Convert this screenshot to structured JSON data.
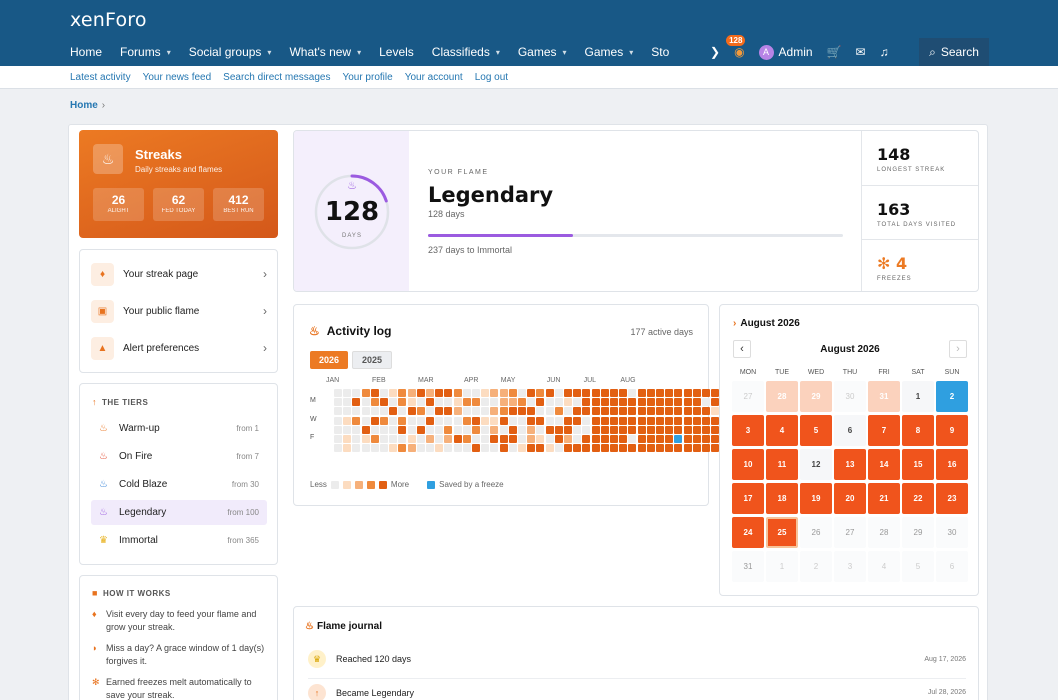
{
  "app": {
    "logo": "xenForo"
  },
  "nav": {
    "items": [
      {
        "label": "Home",
        "caret": ""
      },
      {
        "label": "Forums",
        "caret": "▾"
      },
      {
        "label": "Social groups",
        "caret": "▾"
      },
      {
        "label": "What's new",
        "caret": "▾"
      },
      {
        "label": "Levels",
        "caret": ""
      },
      {
        "label": "Classifieds",
        "caret": "▾"
      },
      {
        "label": "Games",
        "caret": "▾"
      },
      {
        "label": "Games",
        "caret": "▾"
      },
      {
        "label": "Sto",
        "caret": ""
      }
    ],
    "flame_count": "128",
    "user": "Admin",
    "avatar_letter": "A",
    "search_label": "Search"
  },
  "subnav": [
    "Latest activity",
    "Your news feed",
    "Search direct messages",
    "Your profile",
    "Your account",
    "Log out"
  ],
  "breadcrumb": {
    "home": "Home",
    "sep": "›"
  },
  "streaks": {
    "title": "Streaks",
    "subtitle": "Daily streaks and flames",
    "stats": [
      {
        "value": "26",
        "label": "ALIGHT"
      },
      {
        "value": "62",
        "label": "FED TODAY"
      },
      {
        "value": "412",
        "label": "BEST RUN"
      }
    ]
  },
  "links": [
    {
      "label": "Your streak page",
      "icon": "flame-icon"
    },
    {
      "label": "Your public flame",
      "icon": "badge-icon"
    },
    {
      "label": "Alert preferences",
      "icon": "bell-icon"
    }
  ],
  "tiers": {
    "heading": "THE TIERS",
    "items": [
      {
        "name": "Warm-up",
        "from": "from 1",
        "color": "#e8731f"
      },
      {
        "name": "On Fire",
        "from": "from 7",
        "color": "#e0452a"
      },
      {
        "name": "Cold Blaze",
        "from": "from 30",
        "color": "#2f7fd6"
      },
      {
        "name": "Legendary",
        "from": "from 100",
        "color": "#9b5be0"
      },
      {
        "name": "Immortal",
        "from": "from 365",
        "color": "#e8b21f"
      }
    ]
  },
  "how": {
    "heading": "HOW IT WORKS",
    "items": [
      "Visit every day to feed your flame and grow your streak.",
      "Miss a day? A grace window of 1 day(s) forgives it.",
      "Earned freezes melt automatically to save your streak."
    ]
  },
  "flame": {
    "days": "128",
    "days_label": "DAYS",
    "kicker": "YOUR FLAME",
    "tier": "Legendary",
    "days_text": "128 days",
    "progress": 0.35,
    "to_next": "237 days to Immortal",
    "ring_progress": 0.2
  },
  "stats": [
    {
      "value": "148",
      "label": "LONGEST STREAK"
    },
    {
      "value": "163",
      "label": "TOTAL DAYS VISITED"
    },
    {
      "value": "4",
      "label": "FREEZES"
    }
  ],
  "activity": {
    "title": "Activity log",
    "active_days": "177 active days",
    "years": [
      "2026",
      "2025"
    ],
    "months": [
      "JAN",
      "FEB",
      "MAR",
      "APR",
      "MAY",
      "JUN",
      "JUL",
      "AUG"
    ],
    "day_labels": [
      "M",
      "W",
      "F"
    ],
    "legend_less": "Less",
    "legend_more": "More",
    "legend_freeze": "Saved by a freeze",
    "colors": [
      "#ececec",
      "#fcdcc0",
      "#f6b07a",
      "#ef8a3d",
      "#e25f12",
      "#2f9fe0"
    ],
    "weeks": [
      "0000000",
      "0001011",
      "0403000",
      "3000410",
      "4304030",
      "0403000",
      "1040001",
      "3303403",
      "2140012",
      "4030400",
      "2404020",
      "4040001",
      "4040320",
      "3120040",
      "0303030",
      "0304304",
      "1001000",
      "2021240",
      "2234044",
      "3240440",
      "0340001",
      "4044224",
      "3404014",
      "4000401",
      "0030440",
      "4104424",
      "4044004",
      "4440044",
      "4444444",
      "4444444",
      "4444444",
      "4444444",
      "0444404",
      "4444444",
      "4444444",
      "4444444",
      "4444444",
      "4444454",
      "4444444",
      "4444444",
      "4044444",
      "4414444"
    ]
  },
  "calendar": {
    "header": "August 2026",
    "month": "August 2026",
    "dow": [
      "MON",
      "TUE",
      "WED",
      "THU",
      "FRI",
      "SAT",
      "SUN"
    ],
    "days": [
      {
        "d": "27",
        "s": "m"
      },
      {
        "d": "28",
        "s": "p"
      },
      {
        "d": "29",
        "s": "p"
      },
      {
        "d": "30",
        "s": "m"
      },
      {
        "d": "31",
        "s": "p"
      },
      {
        "d": "1",
        "s": "n"
      },
      {
        "d": "2",
        "s": "f"
      },
      {
        "d": "3",
        "s": "a"
      },
      {
        "d": "4",
        "s": "a"
      },
      {
        "d": "5",
        "s": "a"
      },
      {
        "d": "6",
        "s": "n"
      },
      {
        "d": "7",
        "s": "a"
      },
      {
        "d": "8",
        "s": "a"
      },
      {
        "d": "9",
        "s": "a"
      },
      {
        "d": "10",
        "s": "a"
      },
      {
        "d": "11",
        "s": "a"
      },
      {
        "d": "12",
        "s": "n"
      },
      {
        "d": "13",
        "s": "a"
      },
      {
        "d": "14",
        "s": "a"
      },
      {
        "d": "15",
        "s": "a"
      },
      {
        "d": "16",
        "s": "a"
      },
      {
        "d": "17",
        "s": "a"
      },
      {
        "d": "18",
        "s": "a"
      },
      {
        "d": "19",
        "s": "a"
      },
      {
        "d": "20",
        "s": "a"
      },
      {
        "d": "21",
        "s": "a"
      },
      {
        "d": "22",
        "s": "a"
      },
      {
        "d": "23",
        "s": "a"
      },
      {
        "d": "24",
        "s": "a"
      },
      {
        "d": "25",
        "s": "t"
      },
      {
        "d": "26",
        "s": "e"
      },
      {
        "d": "27",
        "s": "e"
      },
      {
        "d": "28",
        "s": "e"
      },
      {
        "d": "29",
        "s": "e"
      },
      {
        "d": "30",
        "s": "e"
      },
      {
        "d": "31",
        "s": "e"
      },
      {
        "d": "1",
        "s": "m"
      },
      {
        "d": "2",
        "s": "m"
      },
      {
        "d": "3",
        "s": "m"
      },
      {
        "d": "4",
        "s": "m"
      },
      {
        "d": "5",
        "s": "m"
      },
      {
        "d": "6",
        "s": "m"
      }
    ]
  },
  "journal": {
    "title": "Flame journal",
    "entries": [
      {
        "text": "Reached 120 days",
        "date": "Aug 17, 2026",
        "icon": "trophy-icon"
      },
      {
        "text": "Became Legendary",
        "date": "Jul 28, 2026",
        "icon": "arrow-up-icon"
      }
    ]
  },
  "colors": {
    "brand": "#185886",
    "accent": "#ec7a23",
    "legendary": "#9b5be0",
    "freeze": "#2f9fe0"
  }
}
